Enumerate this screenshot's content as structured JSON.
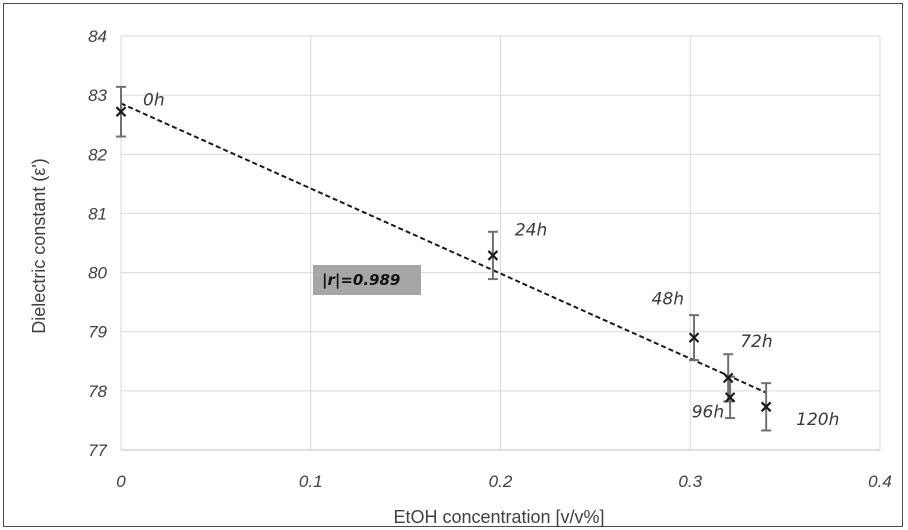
{
  "chart_data": {
    "type": "scatter",
    "title": "",
    "xlabel": "EtOH concentration [v/v%]",
    "ylabel": "Dielectric constant (ε')",
    "xlim": [
      0,
      0.4
    ],
    "ylim": [
      77,
      84
    ],
    "x_ticks": [
      "0",
      "0.1",
      "0.2",
      "0.3",
      "0.4"
    ],
    "y_ticks": [
      "77",
      "78",
      "79",
      "80",
      "81",
      "82",
      "83",
      "84"
    ],
    "grid": true,
    "points": [
      {
        "label": "0h",
        "x": 0.0,
        "y": 82.72,
        "err": 0.42
      },
      {
        "label": "24h",
        "x": 0.196,
        "y": 80.29,
        "err": 0.4
      },
      {
        "label": "48h",
        "x": 0.302,
        "y": 78.9,
        "err": 0.38
      },
      {
        "label": "72h",
        "x": 0.32,
        "y": 78.22,
        "err": 0.4
      },
      {
        "label": "96h",
        "x": 0.321,
        "y": 77.89,
        "err": 0.35
      },
      {
        "label": "120h",
        "x": 0.34,
        "y": 77.73,
        "err": 0.4
      }
    ],
    "trendline": {
      "x": [
        0,
        0.34
      ],
      "y": [
        82.86,
        77.97
      ]
    },
    "annotation": "|r|=0.989",
    "colors": {
      "marker": "#1a1a1a",
      "errorbar": "#707070",
      "grid": "#d9d9d9",
      "annotation_bg": "#a6a6a6"
    }
  }
}
